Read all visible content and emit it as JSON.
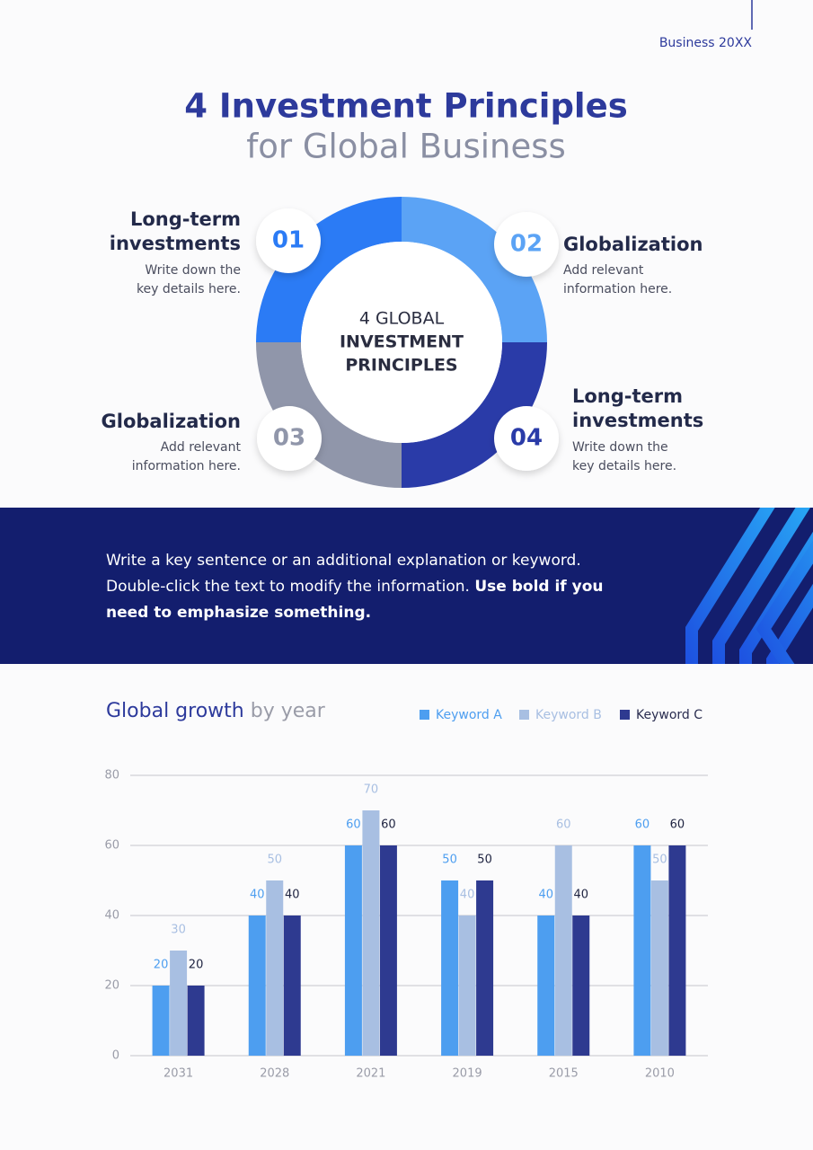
{
  "header": {
    "label": "Business 20XX"
  },
  "title": {
    "main": "4 Investment Principles",
    "sub": "for Global Business"
  },
  "donut": {
    "light": "4 GLOBAL",
    "bold_lines": [
      "INVESTMENT",
      "PRINCIPLES"
    ]
  },
  "principles": [
    {
      "number": "01",
      "title_lines": [
        "Long-term",
        "investments"
      ],
      "description_lines": [
        "Write down the",
        "key details here."
      ]
    },
    {
      "number": "02",
      "title_lines": [
        "Globalization"
      ],
      "description_lines": [
        "Add relevant",
        "information here."
      ]
    },
    {
      "number": "03",
      "title_lines": [
        "Globalization"
      ],
      "description_lines": [
        "Add relevant",
        "information here."
      ]
    },
    {
      "number": "04",
      "title_lines": [
        "Long-term",
        "investments"
      ],
      "description_lines": [
        "Write down the",
        "key details here."
      ]
    }
  ],
  "banner": {
    "line1": "Write a key sentence or an additional explanation or keyword.",
    "line2": "Double-click the text to modify the information.",
    "line2_bold": "Use bold if you",
    "line3_bold": "need to emphasize something."
  },
  "chart_data": {
    "type": "bar",
    "title": {
      "main": "Global growth",
      "sub": "by year"
    },
    "categories": [
      "2031",
      "2028",
      "2021",
      "2019",
      "2015",
      "2010"
    ],
    "series": [
      {
        "name": "Keyword A",
        "color": "#4d9ef0",
        "values": [
          20,
          40,
          60,
          50,
          40,
          60
        ]
      },
      {
        "name": "Keyword B",
        "color": "#a8bfe2",
        "values": [
          30,
          50,
          70,
          40,
          60,
          50
        ]
      },
      {
        "name": "Keyword C",
        "color": "#2e3a90",
        "values": [
          20,
          40,
          60,
          50,
          40,
          60
        ]
      }
    ],
    "ylim": [
      0,
      80
    ],
    "yticks": [
      0,
      20,
      40,
      60,
      80
    ],
    "grid": true
  }
}
